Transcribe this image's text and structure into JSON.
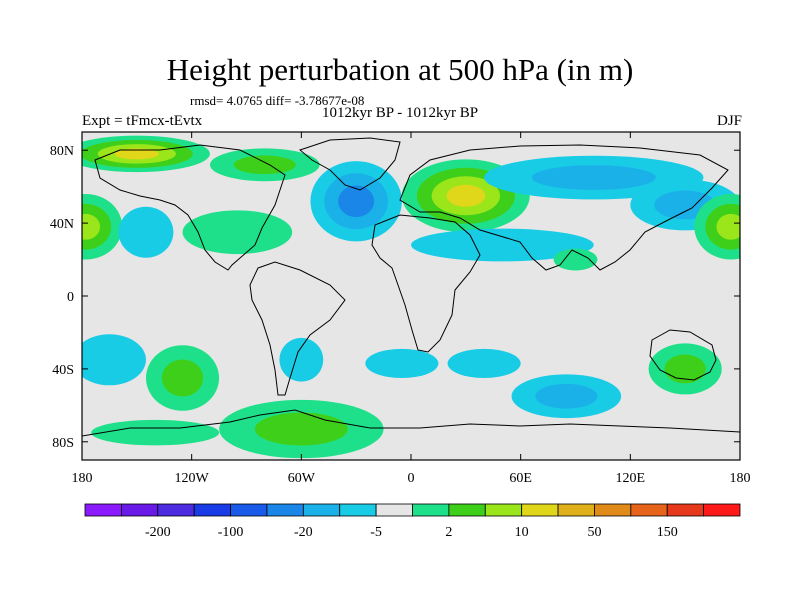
{
  "title": "Height perturbation at 500 hPa (in m)",
  "stats": "rmsd= 4.0765 diff= -3.78677e-08",
  "experiment": "Expt = tFmcx-tEvtx",
  "period": "1012kyr BP - 1012kyr BP",
  "season": "DJF",
  "map": {
    "lon_range": [
      -180,
      180
    ],
    "lat_range": [
      -90,
      90
    ],
    "x_ticks": [
      {
        "lon": -180,
        "label": "180"
      },
      {
        "lon": -120,
        "label": "120W"
      },
      {
        "lon": -60,
        "label": "60W"
      },
      {
        "lon": 0,
        "label": "0"
      },
      {
        "lon": 60,
        "label": "60E"
      },
      {
        "lon": 120,
        "label": "120E"
      },
      {
        "lon": 180,
        "label": "180"
      }
    ],
    "y_ticks": [
      {
        "lat": 80,
        "label": "80N"
      },
      {
        "lat": 40,
        "label": "40N"
      },
      {
        "lat": 0,
        "label": "0"
      },
      {
        "lat": -40,
        "label": "40S"
      },
      {
        "lat": -80,
        "label": "80S"
      }
    ],
    "background_color": "#e6e6e6",
    "anomalies": [
      {
        "lon": -150,
        "lat": 78,
        "rlon": 40,
        "rlat": 10,
        "level": 4
      },
      {
        "lon": -80,
        "lat": 72,
        "rlon": 30,
        "rlat": 9,
        "level": 2
      },
      {
        "lon": -178,
        "lat": 38,
        "rlon": 20,
        "rlat": 18,
        "level": 3
      },
      {
        "lon": -145,
        "lat": 35,
        "rlon": 15,
        "rlat": 14,
        "level": -1
      },
      {
        "lon": -95,
        "lat": 35,
        "rlon": 30,
        "rlat": 12,
        "level": 1
      },
      {
        "lon": -30,
        "lat": 52,
        "rlon": 25,
        "rlat": 22,
        "level": -3
      },
      {
        "lon": 30,
        "lat": 55,
        "rlon": 35,
        "rlat": 20,
        "level": 4
      },
      {
        "lon": 50,
        "lat": 28,
        "rlon": 50,
        "rlat": 9,
        "level": -1
      },
      {
        "lon": 100,
        "lat": 65,
        "rlon": 60,
        "rlat": 12,
        "level": -2
      },
      {
        "lon": 150,
        "lat": 50,
        "rlon": 30,
        "rlat": 14,
        "level": -2
      },
      {
        "lon": 175,
        "lat": 38,
        "rlon": 20,
        "rlat": 18,
        "level": 3
      },
      {
        "lon": 90,
        "lat": 20,
        "rlon": 12,
        "rlat": 6,
        "level": 1
      },
      {
        "lon": -165,
        "lat": -35,
        "rlon": 20,
        "rlat": 14,
        "level": -1
      },
      {
        "lon": -125,
        "lat": -45,
        "rlon": 20,
        "rlat": 18,
        "level": 2
      },
      {
        "lon": -60,
        "lat": -35,
        "rlon": 12,
        "rlat": 12,
        "level": -1
      },
      {
        "lon": -5,
        "lat": -37,
        "rlon": 20,
        "rlat": 8,
        "level": -1
      },
      {
        "lon": 40,
        "lat": -37,
        "rlon": 20,
        "rlat": 8,
        "level": -1
      },
      {
        "lon": -60,
        "lat": -73,
        "rlon": 45,
        "rlat": 16,
        "level": 2
      },
      {
        "lon": -140,
        "lat": -75,
        "rlon": 35,
        "rlat": 7,
        "level": 1
      },
      {
        "lon": 85,
        "lat": -55,
        "rlon": 30,
        "rlat": 12,
        "level": -2
      },
      {
        "lon": 150,
        "lat": -40,
        "rlon": 20,
        "rlat": 14,
        "level": 2
      }
    ]
  },
  "colorbar": {
    "colors": [
      "#8c1aff",
      "#6a1ae6",
      "#4d2be0",
      "#1a3ce6",
      "#1a5ae8",
      "#1a87e8",
      "#1ab0e8",
      "#19cce6",
      "#e6e6e6",
      "#1fe08a",
      "#3ecf1a",
      "#9ae61a",
      "#e0d61a",
      "#e0b01a",
      "#e08a1a",
      "#e6631a",
      "#e6381a",
      "#ff1a1a"
    ],
    "labels": [
      {
        "index": 1,
        "label": "-200"
      },
      {
        "index": 3,
        "label": "-100"
      },
      {
        "index": 5,
        "label": "-20"
      },
      {
        "index": 7,
        "label": "-5"
      },
      {
        "index": 9,
        "label": "2"
      },
      {
        "index": 11,
        "label": "10"
      },
      {
        "index": 13,
        "label": "50"
      },
      {
        "index": 15,
        "label": "150"
      }
    ]
  }
}
